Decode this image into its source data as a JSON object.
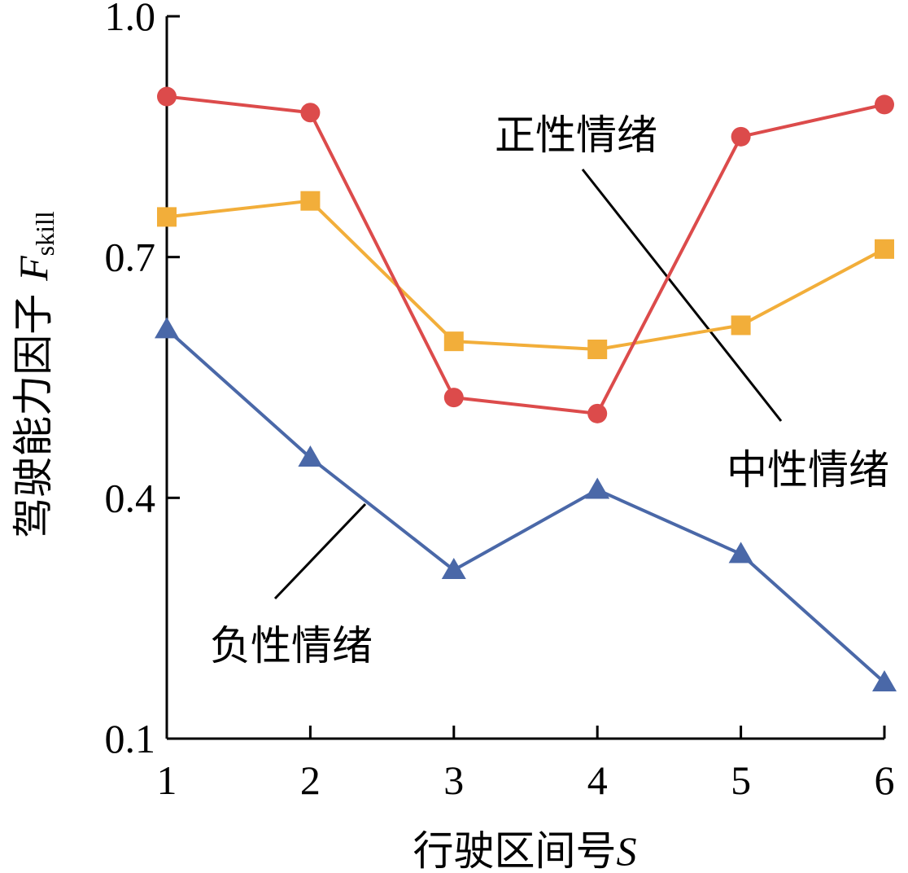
{
  "chart_data": {
    "type": "line",
    "xlabel": {
      "text": "行驶区间号",
      "var": "S"
    },
    "ylabel": {
      "text": "驾驶能力因子",
      "var": "F",
      "sub": "skill"
    },
    "x": [
      1,
      2,
      3,
      4,
      5,
      6
    ],
    "xlim": [
      1,
      6
    ],
    "ylim": [
      0.1,
      1.0
    ],
    "xticks": [
      "1",
      "2",
      "3",
      "4",
      "5",
      "6"
    ],
    "yticks": [
      {
        "value": 0.1,
        "label": "0.1"
      },
      {
        "value": 0.4,
        "label": "0.4"
      },
      {
        "value": 0.7,
        "label": "0.7"
      },
      {
        "value": 1.0,
        "label": "1.0"
      }
    ],
    "grid": false,
    "series": [
      {
        "name": "正性情绪",
        "color": "#dc4b4b",
        "marker": "circle",
        "values": [
          0.9,
          0.88,
          0.525,
          0.505,
          0.85,
          0.89
        ]
      },
      {
        "name": "中性情绪",
        "color": "#f2ae3a",
        "marker": "square",
        "values": [
          0.75,
          0.77,
          0.595,
          0.585,
          0.615,
          0.71
        ]
      },
      {
        "name": "负性情绪",
        "color": "#4a68a8",
        "marker": "triangle",
        "values": [
          0.61,
          0.45,
          0.31,
          0.41,
          0.33,
          0.17
        ]
      }
    ],
    "annotations": [
      {
        "text": "中性情绪",
        "series": 1
      },
      {
        "text": "正性情绪",
        "series": 0
      },
      {
        "text": "负性情绪",
        "series": 2
      }
    ]
  }
}
